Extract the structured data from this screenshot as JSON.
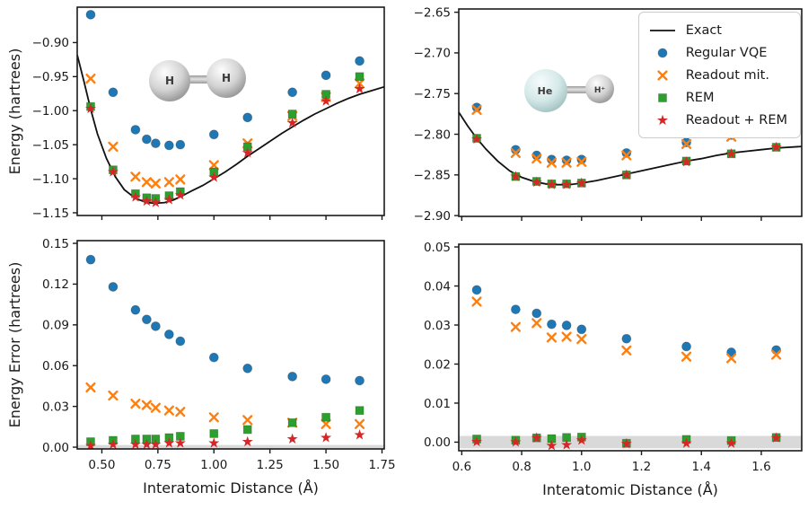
{
  "figure": {
    "xlabel": "Interatomic Distance (Å)",
    "ylabel_energy": "Energy (hartrees)",
    "ylabel_error": "Energy Error (hartrees)"
  },
  "legend": {
    "entries": [
      {
        "label": "Exact",
        "marker": "line",
        "color": "#111111"
      },
      {
        "label": "Regular VQE",
        "marker": "circle",
        "color": "#1f77b4"
      },
      {
        "label": "Readout mit.",
        "marker": "x",
        "color": "#ff7f0e"
      },
      {
        "label": "REM",
        "marker": "square",
        "color": "#2ca02c"
      },
      {
        "label": "Readout + REM",
        "marker": "star",
        "color": "#d62728"
      }
    ]
  },
  "molecules": {
    "h2": {
      "atom1": "H",
      "atom2": "H"
    },
    "heh": {
      "atom1": "He",
      "atom2": "H⁺"
    }
  },
  "colors": {
    "exact_line": "#111111",
    "regular_vqe": "#1f77b4",
    "readout_mit": "#ff7f0e",
    "rem": "#2ca02c",
    "readout_rem": "#d62728",
    "accuracy_band": "#d9d9d9",
    "axis": "#1a1a1a"
  },
  "chart_data": [
    {
      "id": "h2_energy",
      "type": "line+scatter",
      "molecule": "H2",
      "xlabel": "",
      "ylabel": "Energy (hartrees)",
      "xlim": [
        0.39,
        1.76
      ],
      "ylim": [
        -1.154,
        -0.848
      ],
      "xticks": {
        "values": [
          0.5,
          0.75,
          1.0,
          1.25,
          1.5,
          1.75
        ],
        "labels": []
      },
      "yticks": {
        "values": [
          -0.9,
          -0.95,
          -1.0,
          -1.05,
          -1.1,
          -1.15
        ],
        "labels": [
          "−0.90",
          "−0.95",
          "−1.00",
          "−1.05",
          "−1.10",
          "−1.15"
        ]
      },
      "exact_curve": {
        "x": [
          0.39,
          0.42,
          0.45,
          0.48,
          0.52,
          0.56,
          0.6,
          0.65,
          0.7,
          0.74,
          0.78,
          0.82,
          0.86,
          0.9,
          0.95,
          1.0,
          1.05,
          1.1,
          1.15,
          1.2,
          1.25,
          1.3,
          1.35,
          1.4,
          1.45,
          1.5,
          1.55,
          1.6,
          1.65,
          1.7,
          1.76
        ],
        "y": [
          -0.918,
          -0.957,
          -0.998,
          -1.034,
          -1.07,
          -1.097,
          -1.116,
          -1.129,
          -1.135,
          -1.136,
          -1.135,
          -1.131,
          -1.125,
          -1.118,
          -1.11,
          -1.1,
          -1.09,
          -1.079,
          -1.067,
          -1.056,
          -1.045,
          -1.034,
          -1.024,
          -1.014,
          -1.005,
          -0.997,
          -0.989,
          -0.982,
          -0.976,
          -0.971,
          -0.965
        ]
      },
      "x": [
        0.45,
        0.55,
        0.65,
        0.7,
        0.74,
        0.8,
        0.85,
        1.0,
        1.15,
        1.35,
        1.5,
        1.65
      ],
      "series": [
        {
          "name": "Regular VQE",
          "marker": "circle",
          "color": "#1f77b4",
          "values": [
            -0.859,
            -0.973,
            -1.028,
            -1.042,
            -1.048,
            -1.051,
            -1.05,
            -1.035,
            -1.01,
            -0.973,
            -0.948,
            -0.927
          ]
        },
        {
          "name": "Readout mit.",
          "marker": "x",
          "color": "#ff7f0e",
          "values": [
            -0.953,
            -1.053,
            -1.097,
            -1.105,
            -1.107,
            -1.105,
            -1.101,
            -1.08,
            -1.048,
            -1.008,
            -0.98,
            -0.96
          ]
        },
        {
          "name": "REM",
          "marker": "square",
          "color": "#2ca02c",
          "values": [
            -0.994,
            -1.087,
            -1.122,
            -1.128,
            -1.129,
            -1.125,
            -1.119,
            -1.09,
            -1.053,
            -1.005,
            -0.976,
            -0.95
          ]
        },
        {
          "name": "Readout + REM",
          "marker": "star",
          "color": "#d62728",
          "values": [
            -0.997,
            -1.09,
            -1.127,
            -1.133,
            -1.135,
            -1.131,
            -1.124,
            -1.098,
            -1.062,
            -1.018,
            -0.986,
            -0.968
          ]
        }
      ]
    },
    {
      "id": "heh_energy",
      "type": "line+scatter",
      "molecule": "HeH+",
      "xlabel": "",
      "ylabel": "",
      "xlim": [
        0.59,
        1.735
      ],
      "ylim": [
        -2.901,
        -2.646
      ],
      "xticks": {
        "values": [
          0.6,
          0.8,
          1.0,
          1.2,
          1.4,
          1.6
        ],
        "labels": []
      },
      "yticks": {
        "values": [
          -2.65,
          -2.7,
          -2.75,
          -2.8,
          -2.85,
          -2.9
        ],
        "labels": [
          "−2.65",
          "−2.70",
          "−2.75",
          "−2.80",
          "−2.85",
          "−2.90"
        ]
      },
      "exact_curve": {
        "x": [
          0.59,
          0.62,
          0.65,
          0.68,
          0.72,
          0.76,
          0.8,
          0.84,
          0.88,
          0.92,
          0.96,
          1.0,
          1.05,
          1.1,
          1.15,
          1.2,
          1.25,
          1.3,
          1.35,
          1.4,
          1.45,
          1.5,
          1.55,
          1.6,
          1.65,
          1.735
        ],
        "y": [
          -2.773,
          -2.79,
          -2.805,
          -2.818,
          -2.833,
          -2.845,
          -2.853,
          -2.858,
          -2.861,
          -2.862,
          -2.862,
          -2.86,
          -2.857,
          -2.853,
          -2.849,
          -2.845,
          -2.841,
          -2.837,
          -2.833,
          -2.83,
          -2.826,
          -2.823,
          -2.821,
          -2.819,
          -2.817,
          -2.815
        ]
      },
      "x": [
        0.65,
        0.78,
        0.85,
        0.9,
        0.95,
        1.0,
        1.15,
        1.35,
        1.5,
        1.65
      ],
      "series": [
        {
          "name": "Regular VQE",
          "marker": "circle",
          "color": "#1f77b4",
          "values": [
            -2.767,
            -2.819,
            -2.826,
            -2.831,
            -2.832,
            -2.831,
            -2.823,
            -2.81,
            -2.801,
            -2.794
          ]
        },
        {
          "name": "Readout mit.",
          "marker": "x",
          "color": "#ff7f0e",
          "values": [
            -2.77,
            -2.823,
            -2.83,
            -2.835,
            -2.835,
            -2.834,
            -2.826,
            -2.812,
            -2.803,
            -2.796
          ]
        },
        {
          "name": "REM",
          "marker": "square",
          "color": "#2ca02c",
          "values": [
            -2.805,
            -2.852,
            -2.858,
            -2.861,
            -2.861,
            -2.86,
            -2.85,
            -2.833,
            -2.824,
            -2.816
          ]
        },
        {
          "name": "Readout + REM",
          "marker": "star",
          "color": "#d62728",
          "values": [
            -2.806,
            -2.852,
            -2.859,
            -2.862,
            -2.862,
            -2.86,
            -2.85,
            -2.834,
            -2.824,
            -2.816
          ]
        }
      ]
    },
    {
      "id": "h2_error",
      "type": "scatter",
      "molecule": "H2",
      "xlabel": "Interatomic Distance (Å)",
      "ylabel": "Energy Error (hartrees)",
      "xlim": [
        0.39,
        1.76
      ],
      "ylim": [
        -0.0013,
        0.152
      ],
      "band": {
        "ymin": -0.0016,
        "ymax": 0.0016,
        "color": "#d9d9d9"
      },
      "xticks": {
        "values": [
          0.5,
          0.75,
          1.0,
          1.25,
          1.5,
          1.75
        ],
        "labels": [
          "0.50",
          "0.75",
          "1.00",
          "1.25",
          "1.50",
          "1.75"
        ]
      },
      "yticks": {
        "values": [
          0.0,
          0.03,
          0.06,
          0.09,
          0.12,
          0.15
        ],
        "labels": [
          "0.00",
          "0.03",
          "0.06",
          "0.09",
          "0.12",
          "0.15"
        ]
      },
      "x": [
        0.45,
        0.55,
        0.65,
        0.7,
        0.74,
        0.8,
        0.85,
        1.0,
        1.15,
        1.35,
        1.5,
        1.65
      ],
      "series": [
        {
          "name": "Regular VQE",
          "marker": "circle",
          "color": "#1f77b4",
          "values": [
            0.138,
            0.118,
            0.101,
            0.094,
            0.089,
            0.083,
            0.078,
            0.066,
            0.058,
            0.052,
            0.05,
            0.049
          ]
        },
        {
          "name": "Readout mit.",
          "marker": "x",
          "color": "#ff7f0e",
          "values": [
            0.044,
            0.038,
            0.032,
            0.031,
            0.029,
            0.027,
            0.026,
            0.022,
            0.02,
            0.018,
            0.017,
            0.017
          ]
        },
        {
          "name": "REM",
          "marker": "square",
          "color": "#2ca02c",
          "values": [
            0.004,
            0.005,
            0.006,
            0.006,
            0.006,
            0.007,
            0.008,
            0.01,
            0.013,
            0.018,
            0.022,
            0.027
          ]
        },
        {
          "name": "Readout + REM",
          "marker": "star",
          "color": "#d62728",
          "values": [
            0.001,
            0.002,
            0.002,
            0.002,
            0.002,
            0.003,
            0.003,
            0.003,
            0.004,
            0.006,
            0.007,
            0.009
          ]
        }
      ]
    },
    {
      "id": "heh_error",
      "type": "scatter",
      "molecule": "HeH+",
      "xlabel": "Interatomic Distance (Å)",
      "ylabel": "",
      "xlim": [
        0.59,
        1.735
      ],
      "ylim": [
        -0.0022,
        0.0507
      ],
      "band": {
        "ymin": -0.0016,
        "ymax": 0.0016,
        "color": "#d9d9d9"
      },
      "xticks": {
        "values": [
          0.6,
          0.8,
          1.0,
          1.2,
          1.4,
          1.6
        ],
        "labels": [
          "0.6",
          "0.8",
          "1.0",
          "1.2",
          "1.4",
          "1.6"
        ]
      },
      "yticks": {
        "values": [
          0.0,
          0.01,
          0.02,
          0.03,
          0.04,
          0.05
        ],
        "labels": [
          "0.00",
          "0.01",
          "0.02",
          "0.03",
          "0.04",
          "0.05"
        ]
      },
      "x": [
        0.65,
        0.78,
        0.85,
        0.9,
        0.95,
        1.0,
        1.15,
        1.35,
        1.5,
        1.65
      ],
      "series": [
        {
          "name": "Regular VQE",
          "marker": "circle",
          "color": "#1f77b4",
          "values": [
            0.039,
            0.034,
            0.033,
            0.0302,
            0.0299,
            0.0289,
            0.0265,
            0.0245,
            0.023,
            0.0236
          ]
        },
        {
          "name": "Readout mit.",
          "marker": "x",
          "color": "#ff7f0e",
          "values": [
            0.036,
            0.0295,
            0.0305,
            0.0268,
            0.027,
            0.0264,
            0.0235,
            0.0219,
            0.0215,
            0.0224
          ]
        },
        {
          "name": "REM",
          "marker": "square",
          "color": "#2ca02c",
          "values": [
            0.0008,
            0.0005,
            0.0011,
            0.0009,
            0.0012,
            0.0013,
            -0.0003,
            0.0007,
            0.0004,
            0.0012
          ]
        },
        {
          "name": "Readout + REM",
          "marker": "star",
          "color": "#d62728",
          "values": [
            0.0001,
            0.0,
            0.0011,
            -0.0009,
            -0.0007,
            0.0005,
            -0.0004,
            -0.0003,
            -0.0003,
            0.0011
          ]
        }
      ]
    }
  ]
}
